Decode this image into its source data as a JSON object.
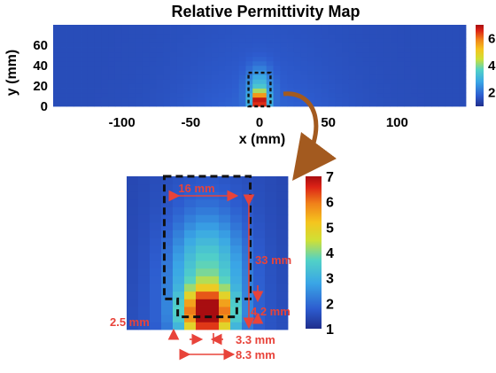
{
  "chart_data": [
    {
      "type": "heatmap",
      "title": "Relative Permittivity Map",
      "xlabel": "x (mm)",
      "ylabel": "y (mm)",
      "xlim": [
        -150,
        150
      ],
      "ylim": [
        0,
        80
      ],
      "x_ticks": [
        -100,
        -50,
        0,
        50,
        100
      ],
      "y_ticks": [
        0,
        20,
        40,
        60
      ],
      "colorbar_ticks": [
        2,
        4,
        6
      ],
      "colorbar_range": [
        1,
        7
      ],
      "grid": false,
      "hotspot": {
        "x": 0,
        "y": 5,
        "value": 7
      },
      "box": {
        "x0": -8,
        "x1": 8,
        "y0": 0,
        "y1": 33
      }
    },
    {
      "type": "heatmap",
      "title": "",
      "colorbar_ticks": [
        1,
        2,
        3,
        4,
        5,
        6,
        7
      ],
      "colorbar_range": [
        1,
        7
      ],
      "xlim": [
        -15,
        15
      ],
      "ylim": [
        -3,
        33
      ],
      "annotations": [
        {
          "key": "width",
          "text": "16 mm"
        },
        {
          "key": "height",
          "text": "33 mm"
        },
        {
          "key": "step_height",
          "text": "4.2 mm"
        },
        {
          "key": "step_left",
          "text": "2.5 mm"
        },
        {
          "key": "step_right",
          "text": "3.3 mm"
        },
        {
          "key": "bottom_width",
          "text": "8.3 mm"
        }
      ]
    }
  ],
  "colormap": [
    "#1f2e8c",
    "#2d5ccf",
    "#3aa6e6",
    "#52d2c6",
    "#cfe036",
    "#f5c41e",
    "#f0821a",
    "#dc2316",
    "#a80d10"
  ]
}
